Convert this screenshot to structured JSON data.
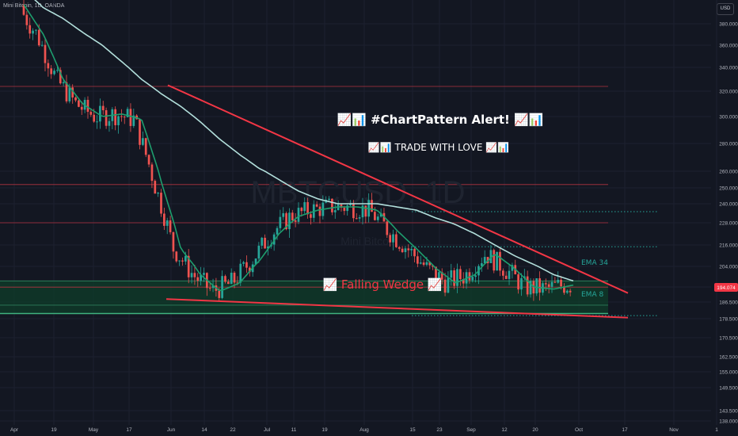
{
  "header": {
    "symbol_line": "Mini Bitcoin, 1D, OANDA",
    "currency_button": "USD"
  },
  "watermark": {
    "ticker": "MBTCUSD, 1D",
    "name": "Mini Bitcoin"
  },
  "colors": {
    "background": "#131722",
    "up": "#26a69a",
    "down": "#ef5350",
    "ema8": "#1e9e6e",
    "ema34": "#b2dfdb",
    "wedge": "#f23645",
    "support_band": "#0f3d2a"
  },
  "annotations": {
    "alert_title": "📈📊 #ChartPattern Alert! 📈📊",
    "alert_sub": "📈📊 TRADE WITH LOVE 📈📊",
    "pattern_label": "📈 Falling Wedge 📈",
    "ema34_label": "EMA 34",
    "ema8_label": "EMA 8",
    "last_price_tag": "194.074"
  },
  "chart_data": {
    "type": "candlestick",
    "x_ticks": [
      "Apr",
      "19",
      "May",
      "17",
      "Jun",
      "14",
      "22",
      "Jul",
      "11",
      "19",
      "Aug",
      "15",
      "23",
      "Sep",
      "12",
      "20",
      "Oct",
      "17",
      "Nov",
      "1"
    ],
    "y_ticks": [
      380.0,
      360.0,
      340.0,
      320.0,
      300.0,
      280.0,
      260.0,
      250.0,
      240.0,
      228.0,
      216.0,
      204.0,
      194.074,
      186.5,
      178.5,
      170.5,
      162.5,
      155.0,
      149.5,
      143.5,
      138.0
    ],
    "y_tick_labels": [
      "380.000",
      "360.000",
      "340.000",
      "320.000",
      "300.000",
      "280.000",
      "260.000",
      "250.000",
      "240.000",
      "228.000",
      "216.000",
      "204.000",
      "194.074",
      "186.500",
      "178.500",
      "170.500",
      "162.500",
      "155.000",
      "149.500",
      "143.500",
      "138.000"
    ],
    "last_price": 194.074,
    "horizontal_levels": [
      324,
      252,
      228,
      194
    ],
    "dotted_levels": [
      235,
      215,
      180
    ],
    "support_zone": [
      181,
      197
    ],
    "wedge_upper": {
      "from_value": 325,
      "to_value": 193
    },
    "wedge_lower": {
      "from_value": 188,
      "to_value": 179
    },
    "ema34_trace": [
      412,
      395,
      385,
      372,
      360,
      345,
      330,
      318,
      308,
      296,
      283,
      272,
      262,
      255,
      248,
      243,
      240,
      240,
      240,
      238,
      236,
      231,
      227,
      222,
      216,
      210,
      205,
      200,
      197
    ],
    "ema8_trace": [
      398,
      370,
      330,
      310,
      300,
      302,
      298,
      254,
      214,
      200,
      192,
      196,
      207,
      222,
      232,
      236,
      238,
      238,
      236,
      224,
      214,
      203,
      196,
      200,
      211,
      203,
      194,
      193,
      195
    ]
  }
}
